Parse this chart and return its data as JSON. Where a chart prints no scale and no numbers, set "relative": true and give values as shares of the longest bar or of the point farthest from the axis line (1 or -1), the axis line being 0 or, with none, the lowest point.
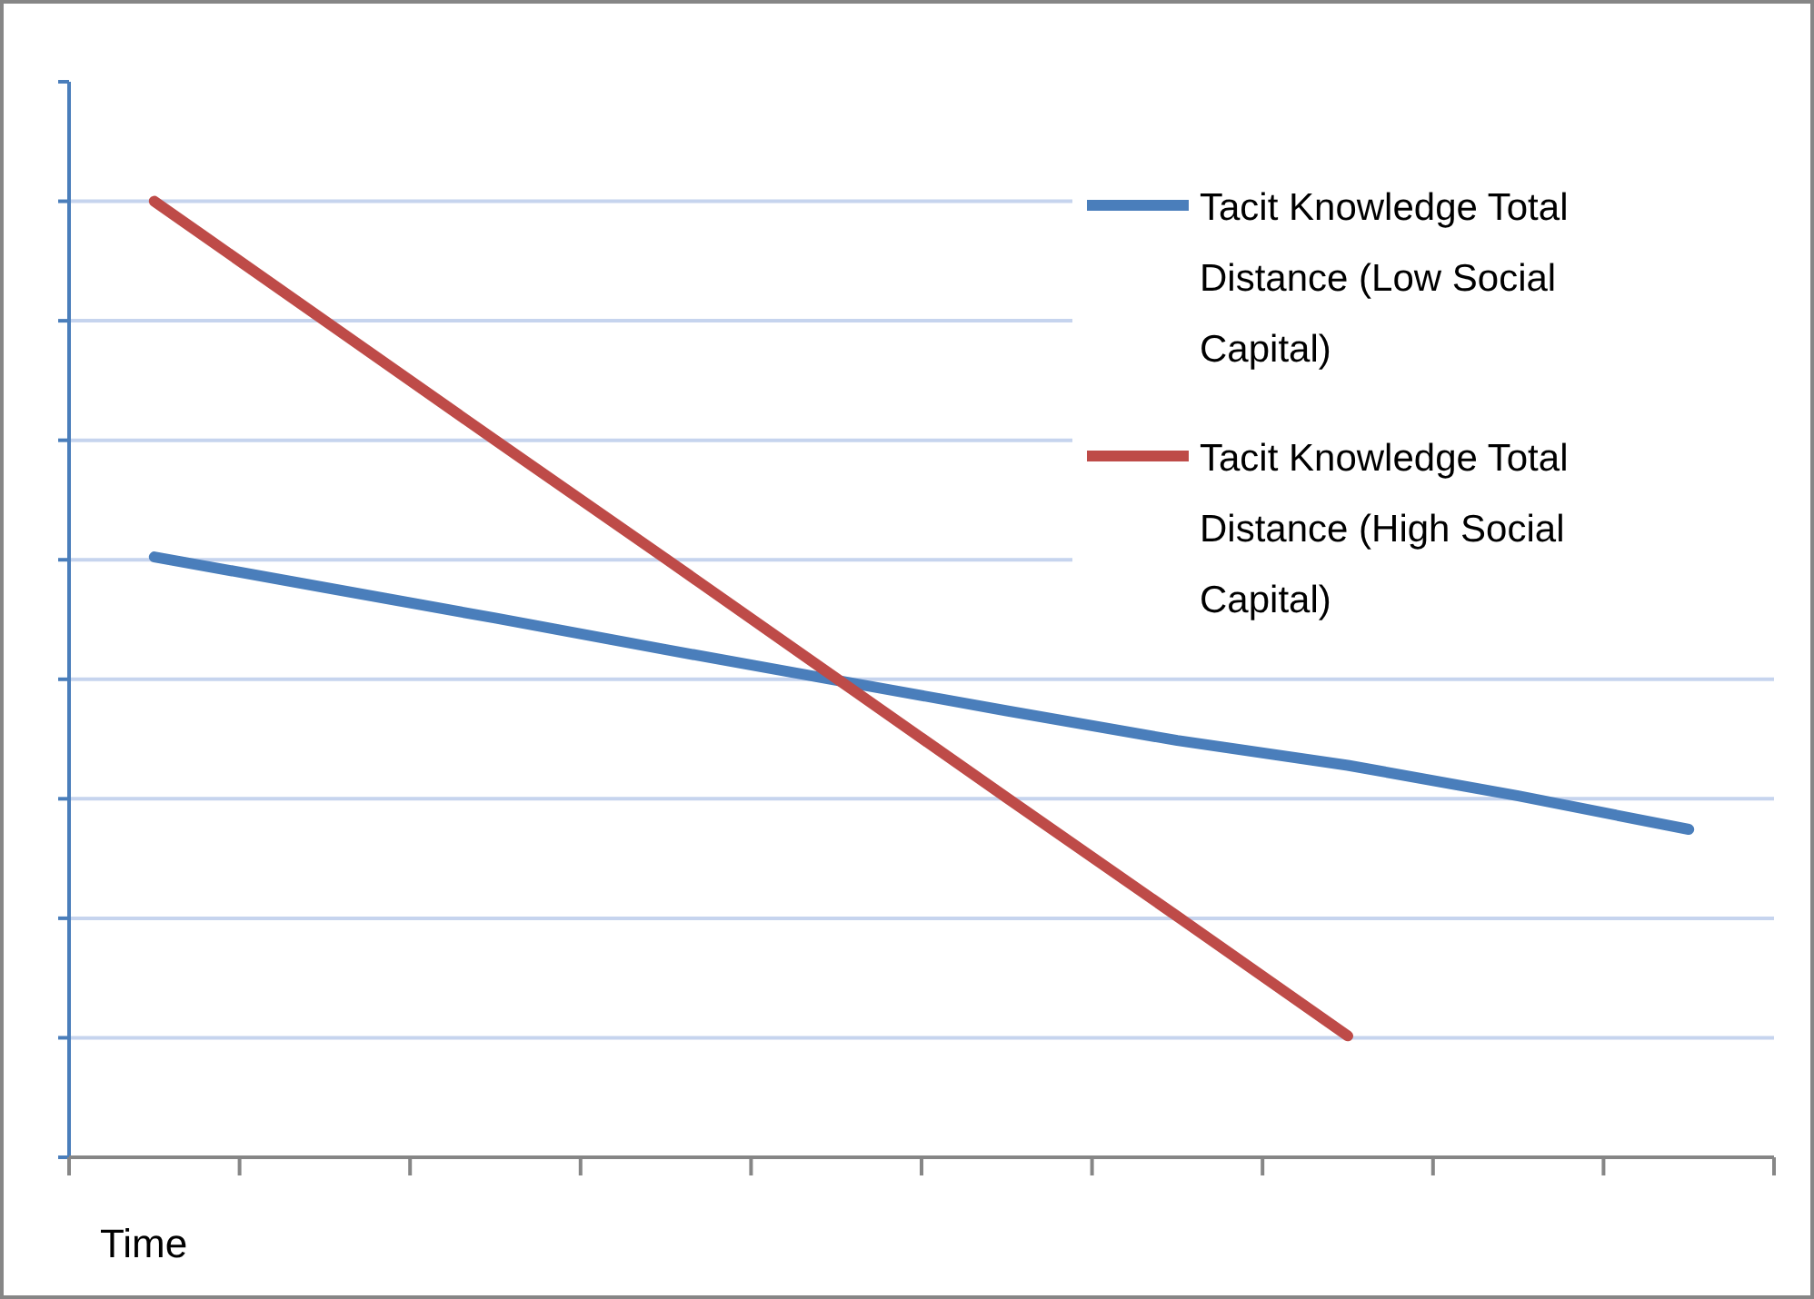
{
  "chart_data": {
    "type": "line",
    "relative": true,
    "xlabel": "Time",
    "categories": [
      null,
      null,
      null,
      null,
      null,
      null,
      null,
      null,
      null,
      null
    ],
    "series": [
      {
        "name": "Tacit Knowledge Total Distance (Low Social Capital)",
        "color": "#4a7ebb",
        "values": [
          0.628,
          0.596,
          0.564,
          0.531,
          0.499,
          0.467,
          0.436,
          0.41,
          0.378,
          0.343
        ]
      },
      {
        "name": "Tacit Knowledge Total Distance (High Social Capital)",
        "color": "#be4b48",
        "values": [
          1,
          0.875,
          0.75,
          0.626,
          0.501,
          0.376,
          0.252,
          0.127,
          null,
          null
        ]
      }
    ],
    "grid": true,
    "legend": "top right",
    "marker": "none",
    "line_style": "solid"
  }
}
